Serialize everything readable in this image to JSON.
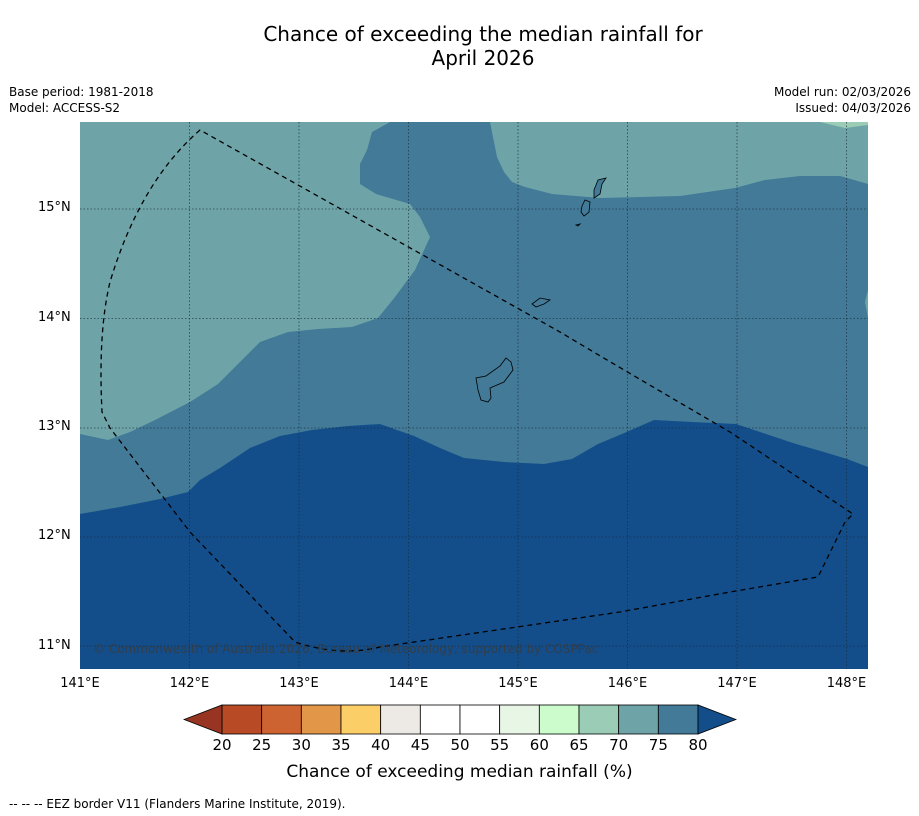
{
  "title": {
    "line1": "Chance of exceeding the median rainfall for",
    "line2": "April 2026"
  },
  "meta_left": {
    "base_period": "Base period: 1981-2018",
    "model": "Model: ACCESS-S2"
  },
  "meta_right": {
    "model_run": "Model run: 02/03/2026",
    "issued": "Issued: 04/03/2026"
  },
  "map": {
    "lat_ticks": [
      "15°N",
      "14°N",
      "13°N",
      "12°N",
      "11°N"
    ],
    "lon_ticks": [
      "141°E",
      "142°E",
      "143°E",
      "144°E",
      "145°E",
      "146°E",
      "147°E",
      "148°E"
    ],
    "lon_range": [
      141.0,
      148.2
    ],
    "lat_range": [
      10.8,
      15.8
    ],
    "regions": [
      {
        "band": "75-80",
        "color": "#427a98"
      },
      {
        "band": "70-75",
        "color": "#6ea4a8"
      },
      {
        "band": ">80",
        "color": "#134e8a"
      }
    ],
    "islands": [
      "Guam",
      "Rota",
      "Tinian",
      "Saipan"
    ],
    "copyright": "© Commonwealth of Australia 2026, Bureau of Meteorology, supported by COSPPac"
  },
  "colorbar": {
    "ticks": [
      "20",
      "25",
      "30",
      "35",
      "40",
      "45",
      "50",
      "55",
      "60",
      "65",
      "70",
      "75",
      "80"
    ],
    "under_color": "#973422",
    "over_color": "#134e8a",
    "colors": [
      "#b84a25",
      "#cc6331",
      "#e29647",
      "#fbce67",
      "#ede9e4",
      "#ffffff",
      "#ffffff",
      "#e8f6e6",
      "#ccfccc",
      "#9bcdb6",
      "#6ea4a8",
      "#427a98"
    ],
    "label": "Chance of exceeding median rainfall (%)"
  },
  "legend": {
    "eez_note": "--  --  -- EEZ border V11 (Flanders Marine Institute, 2019)."
  }
}
